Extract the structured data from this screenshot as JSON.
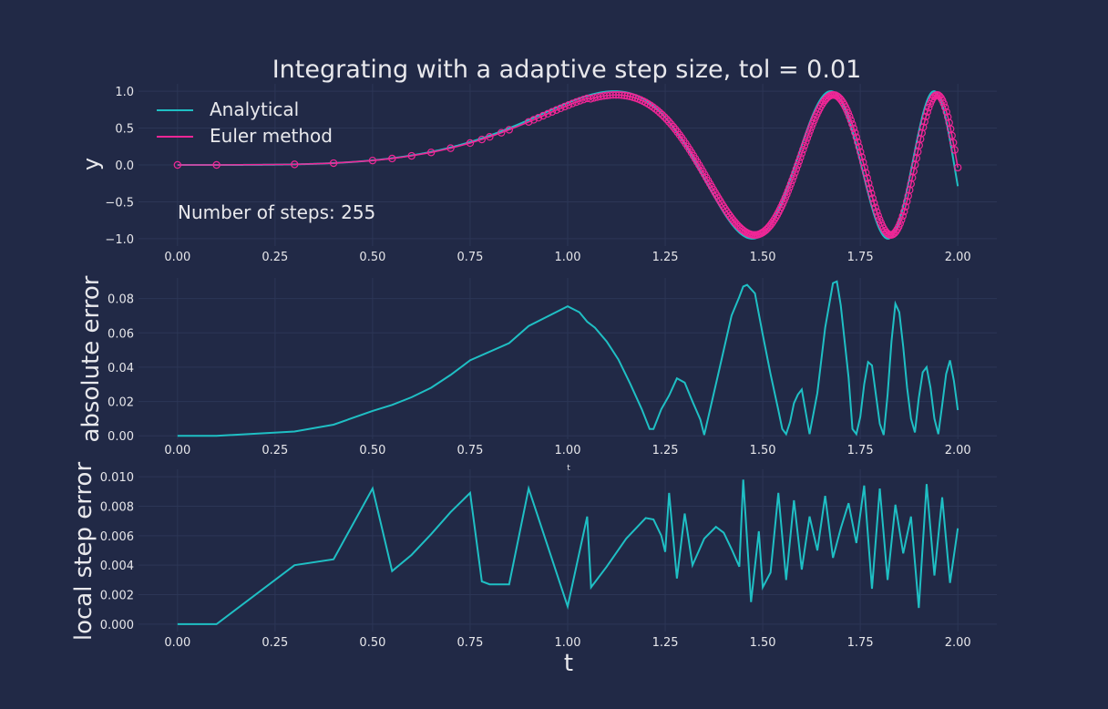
{
  "title": "Integrating with a adaptive step size, tol = 0.01",
  "colors": {
    "background": "#212946",
    "grid": "#2c3656",
    "analytical": "#1fbfc4",
    "euler": "#f02696",
    "text": "#e8e8ec"
  },
  "chart_data": [
    {
      "type": "line",
      "ylabel": "y",
      "xlabel": "",
      "xlim": [
        -0.1,
        2.1
      ],
      "ylim": [
        -1.1,
        1.1
      ],
      "xticks": [
        "0.00",
        "0.25",
        "0.50",
        "0.75",
        "1.00",
        "1.25",
        "1.50",
        "1.75",
        "2.00"
      ],
      "yticks": [
        "1.0",
        "0.5",
        "0.0",
        "−0.5",
        "−1.0"
      ],
      "grid": true,
      "legend_position": "top-left",
      "annotation": "Number of steps: 255",
      "series": [
        {
          "name": "Analytical",
          "function": "sin(t^4)",
          "x_range": [
            0,
            2
          ]
        },
        {
          "name": "Euler method",
          "marker": "open-circle",
          "steps": 255,
          "x_range": [
            0,
            2
          ]
        }
      ]
    },
    {
      "type": "line",
      "ylabel": "absolute error",
      "xlabel": "t",
      "xlim": [
        -0.1,
        2.1
      ],
      "ylim": [
        -0.002,
        0.092
      ],
      "xticks": [
        "0.00",
        "0.25",
        "0.50",
        "0.75",
        "1.00",
        "1.25",
        "1.50",
        "1.75",
        "2.00"
      ],
      "yticks": [
        "0.08",
        "0.06",
        "0.04",
        "0.02",
        "0.00"
      ],
      "grid": true,
      "series": [
        {
          "x": [
            0.0,
            0.1,
            0.3,
            0.4,
            0.5,
            0.55,
            0.6,
            0.65,
            0.7,
            0.75,
            0.85,
            0.9,
            1.0,
            1.03,
            1.05,
            1.07,
            1.1,
            1.13,
            1.16,
            1.19,
            1.21,
            1.22,
            1.24,
            1.26,
            1.28,
            1.3,
            1.32,
            1.34,
            1.35,
            1.39,
            1.42,
            1.44,
            1.45,
            1.46,
            1.48,
            1.5,
            1.52,
            1.54,
            1.55,
            1.56,
            1.57,
            1.58,
            1.59,
            1.6,
            1.62,
            1.64,
            1.66,
            1.68,
            1.69,
            1.7,
            1.72,
            1.73,
            1.74,
            1.75,
            1.76,
            1.77,
            1.78,
            1.79,
            1.8,
            1.81,
            1.82,
            1.83,
            1.84,
            1.85,
            1.86,
            1.87,
            1.88,
            1.89,
            1.9,
            1.91,
            1.92,
            1.93,
            1.94,
            1.95,
            1.96,
            1.97,
            1.98,
            1.99,
            2.0
          ],
          "y": [
            0.0,
            0.0,
            0.0025,
            0.0065,
            0.0145,
            0.018,
            0.0225,
            0.028,
            0.0355,
            0.044,
            0.054,
            0.064,
            0.0755,
            0.072,
            0.0665,
            0.063,
            0.055,
            0.0445,
            0.0305,
            0.0155,
            0.004,
            0.004,
            0.0155,
            0.0235,
            0.0335,
            0.031,
            0.02,
            0.0095,
            0.0005,
            0.04,
            0.07,
            0.081,
            0.087,
            0.088,
            0.083,
            0.059,
            0.036,
            0.015,
            0.004,
            0.001,
            0.008,
            0.019,
            0.024,
            0.027,
            0.001,
            0.025,
            0.063,
            0.089,
            0.09,
            0.076,
            0.034,
            0.004,
            0.001,
            0.011,
            0.03,
            0.043,
            0.041,
            0.024,
            0.007,
            0.0005,
            0.024,
            0.055,
            0.077,
            0.072,
            0.052,
            0.028,
            0.01,
            0.002,
            0.022,
            0.037,
            0.04,
            0.028,
            0.01,
            0.001,
            0.018,
            0.036,
            0.044,
            0.032,
            0.015
          ]
        }
      ]
    },
    {
      "type": "line",
      "ylabel": "local step error",
      "xlabel": "t",
      "xlim": [
        -0.1,
        2.1
      ],
      "ylim": [
        -0.0005,
        0.0105
      ],
      "xticks": [
        "0.00",
        "0.25",
        "0.50",
        "0.75",
        "1.00",
        "1.25",
        "1.50",
        "1.75",
        "2.00"
      ],
      "yticks": [
        "0.010",
        "0.008",
        "0.006",
        "0.004",
        "0.002",
        "0.000"
      ],
      "grid": true,
      "series": [
        {
          "x": [
            0.0,
            0.1,
            0.3,
            0.4,
            0.5,
            0.55,
            0.6,
            0.65,
            0.7,
            0.75,
            0.78,
            0.8,
            0.83,
            0.85,
            0.9,
            1.0,
            1.05,
            1.06,
            1.1,
            1.15,
            1.2,
            1.22,
            1.24,
            1.25,
            1.26,
            1.28,
            1.3,
            1.32,
            1.35,
            1.38,
            1.4,
            1.42,
            1.44,
            1.45,
            1.47,
            1.49,
            1.5,
            1.52,
            1.54,
            1.56,
            1.58,
            1.6,
            1.62,
            1.64,
            1.66,
            1.68,
            1.7,
            1.72,
            1.74,
            1.76,
            1.78,
            1.8,
            1.82,
            1.84,
            1.86,
            1.88,
            1.9,
            1.92,
            1.94,
            1.96,
            1.98,
            2.0
          ],
          "y": [
            0.0,
            0.0,
            0.004,
            0.0044,
            0.0092,
            0.0036,
            0.0047,
            0.0061,
            0.0076,
            0.0089,
            0.0029,
            0.0027,
            0.0027,
            0.0027,
            0.0092,
            0.0012,
            0.0073,
            0.0025,
            0.0039,
            0.0058,
            0.0072,
            0.0071,
            0.006,
            0.0049,
            0.0089,
            0.0031,
            0.0075,
            0.004,
            0.0058,
            0.0066,
            0.0062,
            0.0051,
            0.0039,
            0.0098,
            0.0015,
            0.0063,
            0.0025,
            0.0035,
            0.0089,
            0.003,
            0.0084,
            0.0037,
            0.0073,
            0.005,
            0.0087,
            0.0045,
            0.0065,
            0.0082,
            0.0055,
            0.0094,
            0.0024,
            0.0092,
            0.003,
            0.0081,
            0.0048,
            0.0073,
            0.0011,
            0.0095,
            0.0033,
            0.0086,
            0.0028,
            0.0065
          ]
        }
      ]
    }
  ]
}
